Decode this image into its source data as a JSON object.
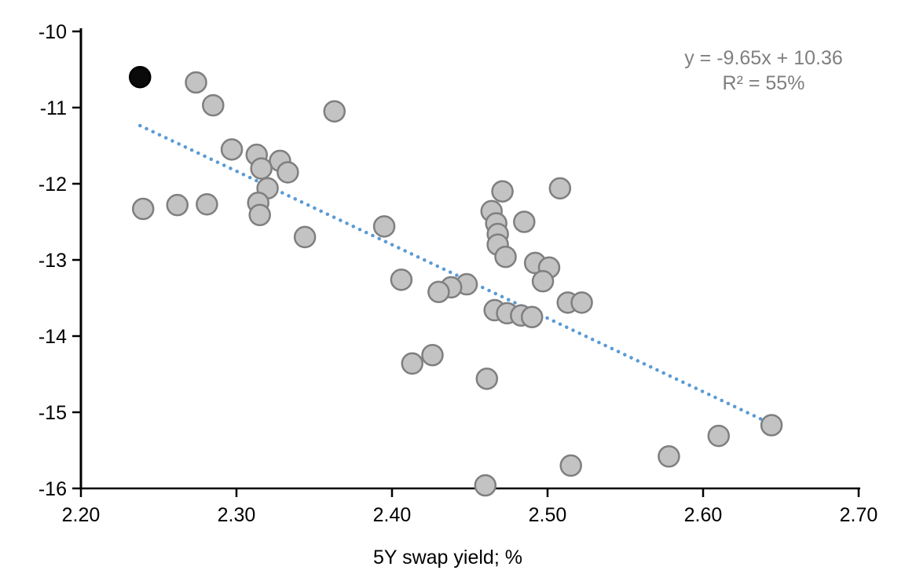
{
  "chart_data": {
    "type": "scatter",
    "title": "",
    "xlabel": "5Y swap yield; %",
    "ylabel": "",
    "xlim": [
      2.2,
      2.7
    ],
    "ylim": [
      -16,
      -10
    ],
    "xticks": [
      {
        "value": 2.2,
        "label": "2.20"
      },
      {
        "value": 2.3,
        "label": "2.30"
      },
      {
        "value": 2.4,
        "label": "2.40"
      },
      {
        "value": 2.5,
        "label": "2.50"
      },
      {
        "value": 2.6,
        "label": "2.60"
      },
      {
        "value": 2.7,
        "label": "2.70"
      }
    ],
    "yticks": [
      {
        "value": -10,
        "label": "-10"
      },
      {
        "value": -11,
        "label": "-11"
      },
      {
        "value": -12,
        "label": "-12"
      },
      {
        "value": -13,
        "label": "-13"
      },
      {
        "value": -14,
        "label": "-14"
      },
      {
        "value": -15,
        "label": "-15"
      },
      {
        "value": -16,
        "label": "-16"
      }
    ],
    "grid": false,
    "legend": "none",
    "annotation": {
      "equation": "y = -9.65x + 10.36",
      "r_squared": "R² = 55%",
      "color": "#7f7f7f"
    },
    "trendline": {
      "slope": -9.65,
      "intercept": 10.36,
      "x_start": 2.238,
      "x_end": 2.641,
      "style": "dotted",
      "color": "#5B9BD5"
    },
    "series": [
      {
        "name": "observations",
        "marker": "circle",
        "fill": "#C3C3C3",
        "edge": "#7F7F7F",
        "points": [
          [
            2.274,
            -10.67
          ],
          [
            2.285,
            -10.97
          ],
          [
            2.363,
            -11.05
          ],
          [
            2.297,
            -11.55
          ],
          [
            2.313,
            -11.62
          ],
          [
            2.328,
            -11.7
          ],
          [
            2.316,
            -11.8
          ],
          [
            2.333,
            -11.85
          ],
          [
            2.32,
            -12.06
          ],
          [
            2.471,
            -12.1
          ],
          [
            2.508,
            -12.06
          ],
          [
            2.24,
            -12.33
          ],
          [
            2.262,
            -12.28
          ],
          [
            2.281,
            -12.27
          ],
          [
            2.314,
            -12.25
          ],
          [
            2.315,
            -12.41
          ],
          [
            2.464,
            -12.36
          ],
          [
            2.467,
            -12.52
          ],
          [
            2.485,
            -12.5
          ],
          [
            2.395,
            -12.56
          ],
          [
            2.468,
            -12.66
          ],
          [
            2.344,
            -12.7
          ],
          [
            2.468,
            -12.8
          ],
          [
            2.473,
            -12.96
          ],
          [
            2.492,
            -13.04
          ],
          [
            2.501,
            -13.1
          ],
          [
            2.406,
            -13.26
          ],
          [
            2.497,
            -13.28
          ],
          [
            2.448,
            -13.32
          ],
          [
            2.438,
            -13.36
          ],
          [
            2.43,
            -13.42
          ],
          [
            2.513,
            -13.56
          ],
          [
            2.522,
            -13.56
          ],
          [
            2.466,
            -13.66
          ],
          [
            2.474,
            -13.7
          ],
          [
            2.483,
            -13.73
          ],
          [
            2.49,
            -13.75
          ],
          [
            2.426,
            -14.25
          ],
          [
            2.413,
            -14.36
          ],
          [
            2.461,
            -14.56
          ],
          [
            2.644,
            -15.17
          ],
          [
            2.61,
            -15.31
          ],
          [
            2.578,
            -15.58
          ],
          [
            2.515,
            -15.7
          ],
          [
            2.46,
            -15.96
          ]
        ]
      },
      {
        "name": "highlighted-observation",
        "marker": "circle",
        "fill": "#0a0a0a",
        "edge": "#000000",
        "points": [
          [
            2.238,
            -10.6
          ]
        ]
      }
    ]
  }
}
